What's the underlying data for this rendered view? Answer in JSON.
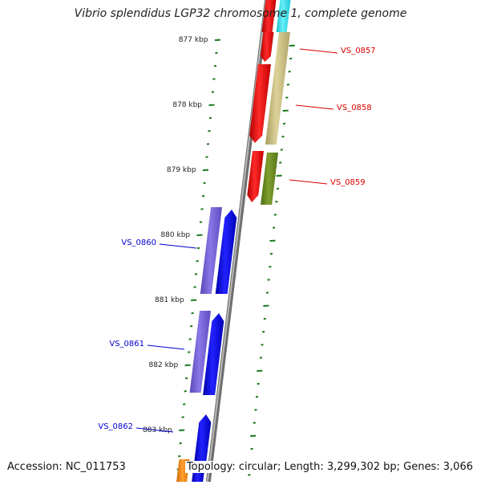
{
  "title": "Vibrio splendidus LGP32 chromosome 1, complete genome",
  "footer": {
    "accession": "Accession: NC_011753",
    "topology": "Topology: circular; Length: 3,299,302 bp; Genes: 3,066"
  },
  "colors": {
    "background": "#ffffff",
    "backbone": "#8a8a8a",
    "ticks": "#1a7a1a",
    "forward_gene_red": "#ee1111",
    "reverse_gene_blue": "#1111ee",
    "tan_gene": "#c8bd82",
    "olive_gene": "#6e8f22",
    "purple_gene": "#7a68d8",
    "cyan_gene": "#33dde8",
    "orange_gene": "#ff8c00",
    "label_red": "#dd0000",
    "label_blue": "#0000cc"
  },
  "scale_labels": [
    "877 kbp",
    "878 kbp",
    "879 kbp",
    "880 kbp",
    "881 kbp",
    "882 kbp",
    "883 kbp"
  ],
  "genes": [
    {
      "name": "VS_0857",
      "color": "#dd0000"
    },
    {
      "name": "VS_0858",
      "color": "#dd0000"
    },
    {
      "name": "VS_0859",
      "color": "#dd0000"
    },
    {
      "name": "VS_0860",
      "color": "#0000cc"
    },
    {
      "name": "VS_0861",
      "color": "#0000cc"
    },
    {
      "name": "VS_0862",
      "color": "#0000cc"
    }
  ]
}
